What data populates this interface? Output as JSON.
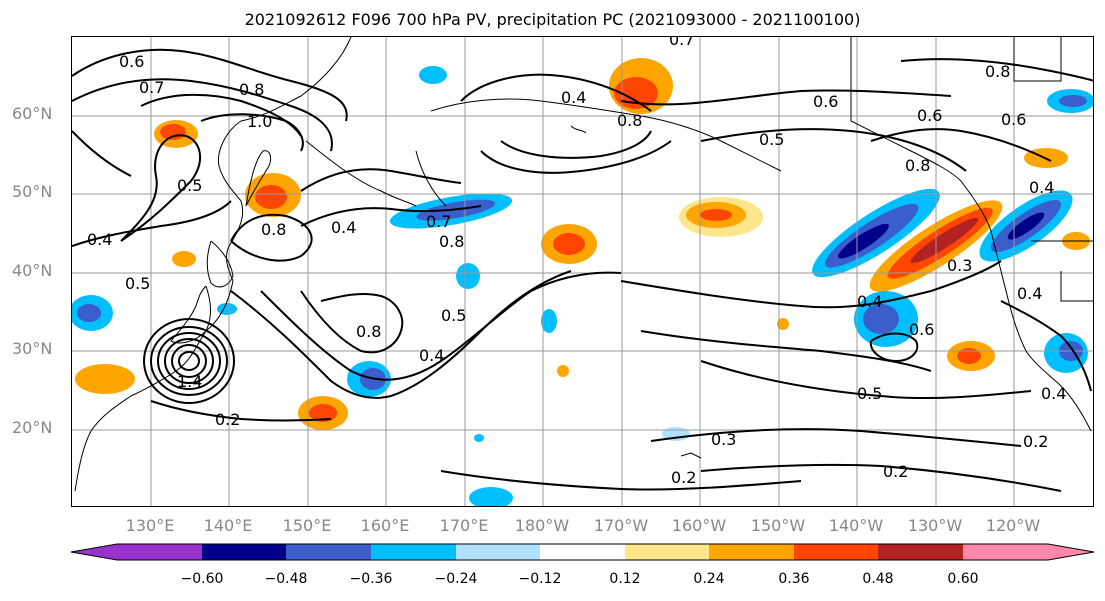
{
  "title": "2021092612 F096 700 hPa PV, precipitation PC (2021093000 - 2021100100)",
  "lat_labels": [
    "60°N",
    "50°N",
    "40°N",
    "30°N",
    "20°N"
  ],
  "lon_labels": [
    "130°E",
    "140°E",
    "150°E",
    "160°E",
    "170°E",
    "180°W",
    "170°W",
    "160°W",
    "150°W",
    "140°W",
    "130°W",
    "120°W"
  ],
  "contour_labels": [
    "0.6",
    "0.7",
    "0.8",
    "1.0",
    "0.5",
    "0.8",
    "0.4",
    "0.4",
    "0.5",
    "0.2",
    "0.7",
    "0.8",
    "0.4",
    "0.5",
    "0.4",
    "0.8",
    "0.6",
    "0.7",
    "0.8",
    "0.5",
    "0.6",
    "0.8",
    "0.6",
    "0.4",
    "0.3",
    "0.4",
    "0.4",
    "0.6",
    "0.5",
    "0.3",
    "0.2",
    "0.2",
    "0.2",
    "0.4",
    "1.4",
    "0.8"
  ],
  "colorbar": {
    "ticks": [
      "−0.60",
      "−0.48",
      "−0.36",
      "−0.24",
      "−0.12",
      "0.12",
      "0.24",
      "0.36",
      "0.48",
      "0.60"
    ],
    "colors": [
      "#9932cc",
      "#00008b",
      "#3a5fcd",
      "#00bfff",
      "#b0e2ff",
      "#ffffff",
      "#ffe68a",
      "#ffa500",
      "#ff4500",
      "#b22222",
      "#ff88aa"
    ]
  },
  "colors": {
    "land_outline": "#000000",
    "grid": "#9a9a9a",
    "label_gray": "#888888"
  }
}
